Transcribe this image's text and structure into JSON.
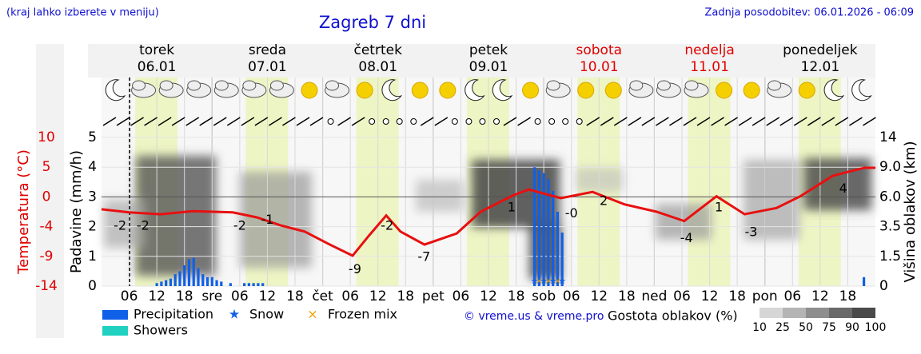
{
  "header": {
    "hint": "(kraj lahko izberete v meniju)",
    "title": "Zagreb 7 dni",
    "updated": "Zadnja posodobitev: 06.01.2026 - 06:09"
  },
  "chart_data": {
    "type": "meteogram",
    "days": [
      {
        "name": "torek",
        "date": "06.01",
        "color": "#000000"
      },
      {
        "name": "sreda",
        "date": "07.01",
        "color": "#000000"
      },
      {
        "name": "četrtek",
        "date": "08.01",
        "color": "#000000"
      },
      {
        "name": "petek",
        "date": "09.01",
        "color": "#000000"
      },
      {
        "name": "sobota",
        "date": "10.01",
        "color": "#e00000"
      },
      {
        "name": "nedelja",
        "date": "11.01",
        "color": "#e00000"
      },
      {
        "name": "ponedeljek",
        "date": "12.01",
        "color": "#000000"
      }
    ],
    "xlim": [
      0,
      168
    ],
    "xticks": [
      {
        "value": 6,
        "label": "06"
      },
      12,
      18,
      {
        "value": 24,
        "label": "sre"
      },
      {
        "value": 30,
        "label": "06"
      },
      {
        "value": 36,
        "label": "12"
      },
      {
        "value": 42,
        "label": "18"
      },
      {
        "value": 48,
        "label": "čet"
      },
      {
        "value": 54,
        "label": "06"
      },
      {
        "value": 60,
        "label": "12"
      },
      {
        "value": 66,
        "label": "18"
      },
      {
        "value": 72,
        "label": "pet"
      },
      {
        "value": 78,
        "label": "06"
      },
      {
        "value": 84,
        "label": "12"
      },
      {
        "value": 90,
        "label": "18"
      },
      {
        "value": 96,
        "label": "sob"
      },
      {
        "value": 102,
        "label": "06"
      },
      {
        "value": 108,
        "label": "12"
      },
      {
        "value": 114,
        "label": "18"
      },
      {
        "value": 120,
        "label": "ned"
      },
      {
        "value": 126,
        "label": "06"
      },
      {
        "value": 132,
        "label": "12"
      },
      {
        "value": 138,
        "label": "18"
      },
      {
        "value": 144,
        "label": "pon"
      },
      {
        "value": 150,
        "label": "06"
      },
      {
        "value": 156,
        "label": "12"
      },
      {
        "value": 162,
        "label": "18"
      }
    ],
    "current_time_x": 6.1,
    "daylight": {
      "start": 7.3,
      "end": 16.5,
      "color": "#eef5c4"
    },
    "ylabel": "Padavine (mm/h)",
    "ylim": [
      0,
      5
    ],
    "yticks": [
      0,
      1,
      2,
      3,
      4,
      5
    ],
    "temperature_axis": {
      "title": "Temperatura (°C)",
      "lim": [
        -14,
        10
      ],
      "ticks": [
        {
          "value": 10,
          "label": "10"
        },
        {
          "value": 5.2,
          "label": "5"
        },
        {
          "value": 0.4,
          "label": "0"
        },
        {
          "value": -4.4,
          "label": "-4"
        },
        {
          "value": -9.2,
          "label": "-9"
        },
        {
          "value": -14,
          "label": "-14"
        }
      ],
      "color": "#e00000"
    },
    "cloud_axis": {
      "title": "Višina oblakov (km)",
      "lim": [
        0,
        14
      ],
      "ticks": [
        0,
        1.5,
        3.5,
        {
          "value": 6,
          "label": "6.0"
        },
        {
          "value": 9,
          "label": "9.0"
        },
        14
      ]
    },
    "series": [
      {
        "name": "Precipitation",
        "color": "#1060e8",
        "x": [
          12,
          13,
          14,
          15,
          16,
          17,
          18,
          19,
          20,
          21,
          22,
          23,
          24,
          25,
          26,
          28,
          31,
          32,
          33,
          34,
          35,
          94,
          95,
          96,
          97,
          98,
          99,
          100,
          165.5
        ],
        "values": [
          0.1,
          0.15,
          0.2,
          0.25,
          0.4,
          0.5,
          0.7,
          0.9,
          0.95,
          0.6,
          0.4,
          0.3,
          0.3,
          0.2,
          0.15,
          0.1,
          0.1,
          0.1,
          0.1,
          0.1,
          0.1,
          4.0,
          3.9,
          3.8,
          3.6,
          3.2,
          2.5,
          1.8,
          0.3
        ]
      },
      {
        "name": "Snow",
        "color": "#1060e8",
        "x": [
          94,
          96,
          98,
          100
        ]
      },
      {
        "name": "Frozen mix",
        "color": "#f0a000",
        "x": [
          95,
          97,
          99
        ]
      },
      {
        "name": "Showers",
        "color": "#20d0c0",
        "x": []
      },
      {
        "name": "Temperature",
        "color": "#e81010",
        "axis": "temperature",
        "x": [
          0,
          6,
          12.8,
          19.8,
          28.5,
          33.7,
          38.9,
          44.1,
          49.3,
          54.5,
          58,
          61.8,
          64.9,
          70.1,
          77.1,
          82.3,
          89.2,
          92.7,
          99.7,
          106.6,
          113.5,
          120.5,
          126.5,
          133.5,
          139.6,
          146.5,
          151.7,
          158.7,
          165.6,
          168
        ],
        "values": [
          -1.6,
          -2.1,
          -2.4,
          -1.9,
          -2.1,
          -2.9,
          -4.2,
          -5.2,
          -7.2,
          -9.1,
          -5.9,
          -2.6,
          -5.2,
          -7.3,
          -5.5,
          -2,
          0.6,
          1.6,
          0.2,
          1.2,
          -0.8,
          -2,
          -3.5,
          0.5,
          -2.4,
          -1.4,
          0.5,
          3.8,
          5.1,
          5.1
        ]
      }
    ],
    "extremes": {
      "x": [
        4,
        9,
        30,
        36,
        55,
        62,
        70,
        89,
        102,
        109,
        127,
        134,
        141,
        161
      ],
      "values": [
        -2,
        -2,
        -2,
        -1,
        -9,
        -2,
        -7,
        1,
        0,
        2,
        -4,
        1,
        -3,
        4
      ],
      "value_labels": [
        "-2",
        "-2",
        "-2",
        "-1",
        "-9",
        "-2",
        "-7",
        "1",
        "-0",
        "2",
        "-4",
        "1",
        "-3",
        "4"
      ]
    },
    "credit": "© vreme.us & vreme.pro",
    "cloud_density": {
      "title": "Gostota oblakov (%)",
      "levels": [
        10,
        25,
        50,
        75,
        90,
        100
      ],
      "colors": [
        "#d6d6d6",
        "#b4b4b4",
        "#8e8e8e",
        "#6a6a6a",
        "#4a4a4a"
      ]
    }
  }
}
